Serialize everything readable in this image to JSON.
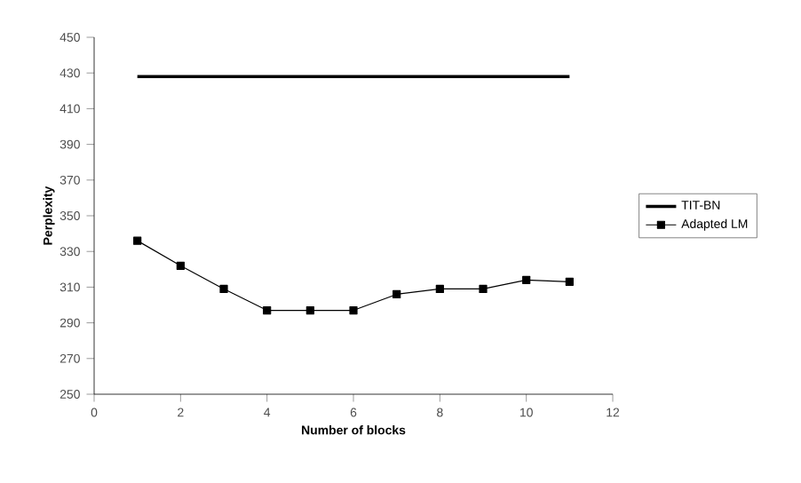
{
  "chart_data": {
    "type": "line",
    "xlabel": "Number of blocks",
    "ylabel": "Perplexity",
    "x": [
      1,
      2,
      3,
      4,
      5,
      6,
      7,
      8,
      9,
      10,
      11
    ],
    "series": [
      {
        "name": "TIT-BN",
        "color": "#000000",
        "marker": "none",
        "values": [
          428,
          428,
          428,
          428,
          428,
          428,
          428,
          428,
          428,
          428,
          428
        ]
      },
      {
        "name": "Adapted LM",
        "color": "#000000",
        "marker": "square",
        "values": [
          336,
          322,
          309,
          297,
          297,
          297,
          306,
          309,
          309,
          314,
          313
        ]
      }
    ],
    "xlim": [
      0,
      12
    ],
    "xticks": [
      0,
      2,
      4,
      6,
      8,
      10,
      12
    ],
    "ylim": [
      250,
      450
    ],
    "yticks": [
      250,
      270,
      290,
      310,
      330,
      350,
      370,
      390,
      410,
      430,
      450
    ],
    "grid": false,
    "legend": "right"
  }
}
